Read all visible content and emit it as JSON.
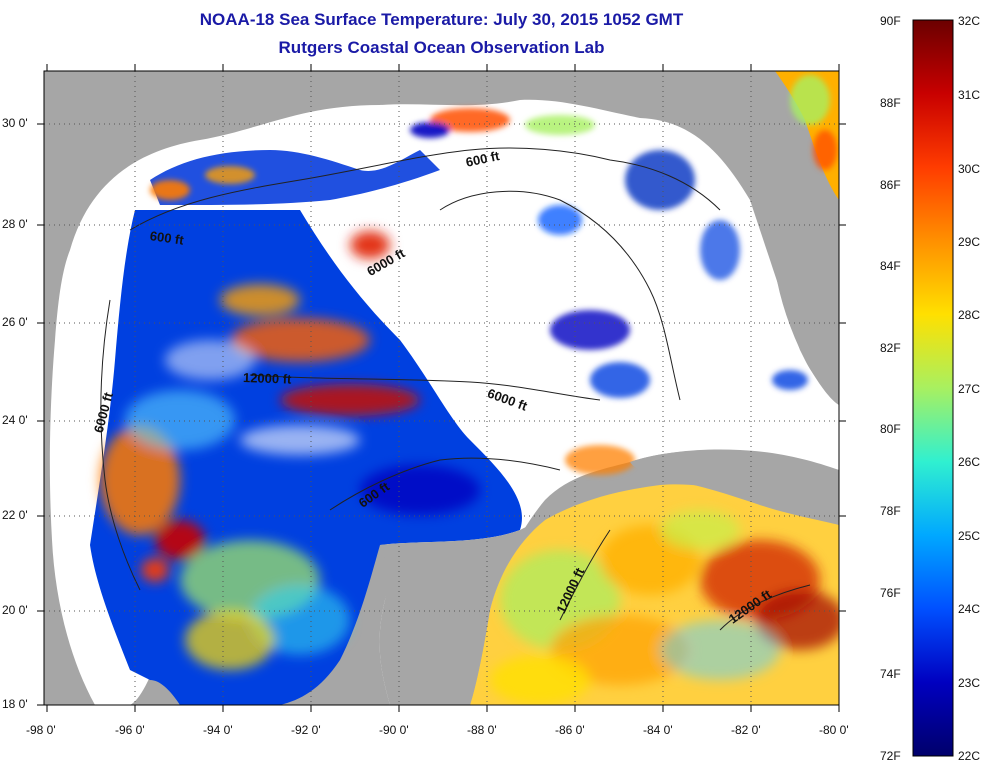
{
  "title": "NOAA-18 Sea Surface Temperature:  July 30, 2015 1052 GMT",
  "subtitle": "Rutgers Coastal Ocean Observation Lab",
  "axes": {
    "x_ticks": [
      "-98 0'",
      "-96 0'",
      "-94 0'",
      "-92 0'",
      "-90 0'",
      "-88 0'",
      "-86 0'",
      "-84 0'",
      "-82 0'",
      "-80 0'"
    ],
    "y_ticks": [
      "30 0'",
      "28 0'",
      "26 0'",
      "24 0'",
      "22 0'",
      "20 0'",
      "18 0'"
    ],
    "x_range": [
      -98,
      -80
    ],
    "y_range": [
      18,
      31
    ]
  },
  "contour_labels": [
    {
      "text": "600 ft"
    },
    {
      "text": "600 ft"
    },
    {
      "text": "6000 ft"
    },
    {
      "text": "12000 ft"
    },
    {
      "text": "6000 ft"
    },
    {
      "text": "6000 ft"
    },
    {
      "text": "600 ft"
    },
    {
      "text": "12000 ft"
    },
    {
      "text": "12000 ft"
    }
  ],
  "colorbar": {
    "f_labels": [
      "90F",
      "88F",
      "86F",
      "84F",
      "82F",
      "80F",
      "78F",
      "76F",
      "74F",
      "72F"
    ],
    "c_labels": [
      "32C",
      "31C",
      "30C",
      "29C",
      "28C",
      "27C",
      "26C",
      "25C",
      "24C",
      "23C",
      "22C"
    ],
    "colors": [
      "#6b0000",
      "#c80000",
      "#ff3c00",
      "#ff9000",
      "#ffe000",
      "#a8f060",
      "#30f0d0",
      "#00a8ff",
      "#0050ff",
      "#0000c0",
      "#00006b"
    ]
  },
  "colors": {
    "land": "#a6a6a6",
    "cloud": "#ffffff",
    "title": "#1a1aa6"
  }
}
